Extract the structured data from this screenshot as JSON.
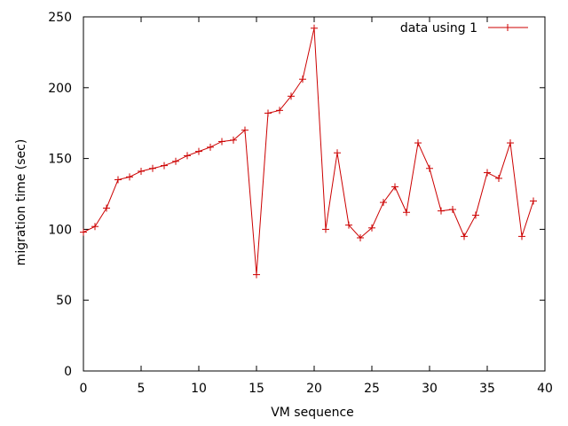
{
  "chart_data": {
    "type": "line",
    "xlabel": "VM sequence",
    "ylabel": "migration time (sec)",
    "xlim": [
      0,
      40
    ],
    "ylim": [
      0,
      250
    ],
    "xticks": [
      0,
      5,
      10,
      15,
      20,
      25,
      30,
      35,
      40
    ],
    "yticks": [
      0,
      50,
      100,
      150,
      200,
      250
    ],
    "grid": false,
    "legend_position": "top-right",
    "series": [
      {
        "name": "data using 1",
        "color": "#cc0000",
        "marker": "plus",
        "x": [
          0,
          1,
          2,
          3,
          4,
          5,
          6,
          7,
          8,
          9,
          10,
          11,
          12,
          13,
          14,
          15,
          16,
          17,
          18,
          19,
          20,
          21,
          22,
          23,
          24,
          25,
          26,
          27,
          28,
          29,
          30,
          31,
          32,
          33,
          34,
          35,
          36,
          37,
          38,
          39
        ],
        "y": [
          98,
          102,
          115,
          135,
          137,
          141,
          143,
          145,
          148,
          152,
          155,
          158,
          162,
          163,
          170,
          68,
          182,
          184,
          194,
          206,
          242,
          100,
          154,
          103,
          94,
          101,
          119,
          130,
          112,
          161,
          143,
          113,
          114,
          95,
          110,
          140,
          136,
          161,
          95,
          120
        ]
      }
    ]
  }
}
